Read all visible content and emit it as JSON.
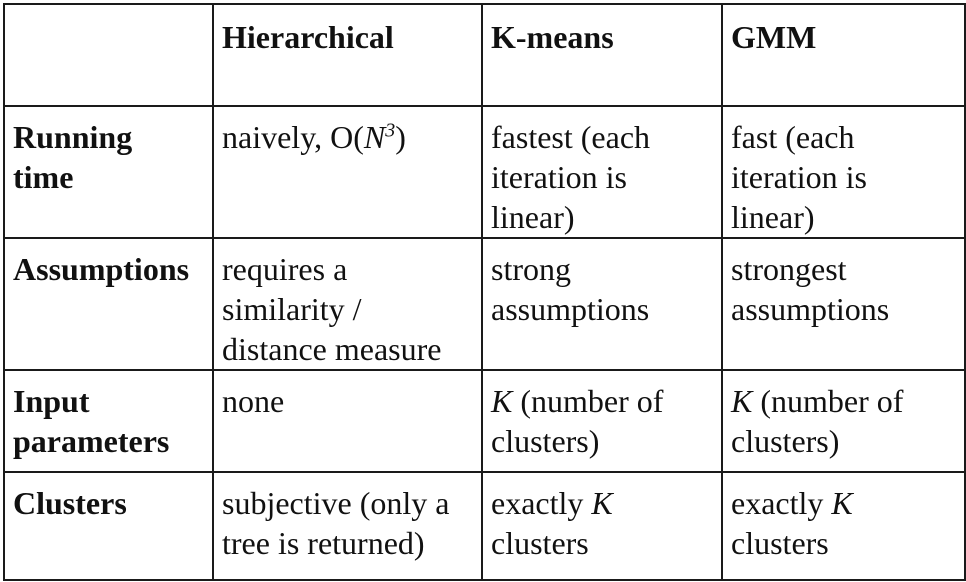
{
  "table": {
    "headers": [
      "",
      "Hierarchical",
      "K-means",
      "GMM"
    ],
    "rows": [
      {
        "label": [
          "Running",
          "time"
        ],
        "hierarchical": {
          "pre": "naively, O(",
          "var": "N",
          "sup": "3",
          "post": ")"
        },
        "kmeans": [
          "fastest (each",
          "iteration is",
          "linear)"
        ],
        "gmm": [
          "fast (each",
          "iteration is",
          "linear)"
        ]
      },
      {
        "label": [
          "Assumptions"
        ],
        "hierarchical": [
          "requires a",
          "similarity /",
          "distance measure"
        ],
        "kmeans": [
          "strong",
          "assumptions"
        ],
        "gmm": [
          "strongest",
          "assumptions"
        ]
      },
      {
        "label": [
          "Input",
          "parameters"
        ],
        "hierarchical": [
          "none"
        ],
        "kmeans": {
          "var": "K",
          "line1_rest": " (number of",
          "line2": "clusters)"
        },
        "gmm": {
          "var": "K",
          "line1_rest": " (number of",
          "line2": "clusters)"
        }
      },
      {
        "label": [
          "Clusters"
        ],
        "hierarchical": [
          "subjective (only a",
          "tree is returned)"
        ],
        "kmeans": {
          "line1_pre": "exactly ",
          "var": "K",
          "line2": "clusters"
        },
        "gmm": {
          "line1_pre": "exactly ",
          "var": "K",
          "line2": "clusters"
        }
      }
    ]
  }
}
